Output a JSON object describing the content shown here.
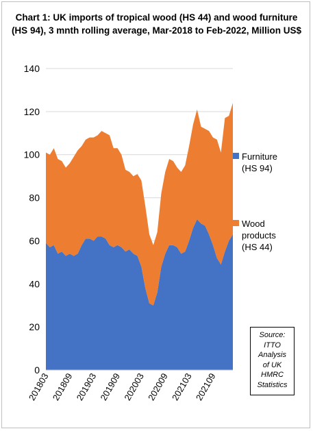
{
  "chart_data": {
    "type": "area",
    "stacked": true,
    "title": "Chart 1: UK imports of tropical wood (HS 44) and wood furniture (HS 94), 3 mnth rolling average, Mar-2018 to Feb-2022, Million US$",
    "ylim": [
      0,
      140
    ],
    "yticks": [
      0,
      20,
      40,
      60,
      80,
      100,
      120,
      140
    ],
    "x": [
      "201803",
      "201804",
      "201805",
      "201806",
      "201807",
      "201808",
      "201809",
      "201810",
      "201811",
      "201812",
      "201901",
      "201902",
      "201903",
      "201904",
      "201905",
      "201906",
      "201907",
      "201908",
      "201909",
      "201910",
      "201911",
      "201912",
      "202001",
      "202002",
      "202003",
      "202004",
      "202005",
      "202006",
      "202007",
      "202008",
      "202009",
      "202010",
      "202011",
      "202012",
      "202101",
      "202102",
      "202103",
      "202104",
      "202105",
      "202106",
      "202107",
      "202108",
      "202109",
      "202110",
      "202111",
      "202112",
      "202201",
      "202202"
    ],
    "xtick_labels": [
      "201803",
      "201809",
      "201903",
      "201909",
      "202003",
      "202009",
      "202103",
      "202109"
    ],
    "series": [
      {
        "name": "Furniture (HS 94)",
        "color": "#4472c4",
        "values": [
          59,
          57,
          58,
          54,
          55,
          53,
          54,
          53,
          54,
          58,
          61,
          61,
          60,
          62,
          62,
          61,
          58,
          57,
          58,
          57,
          55,
          56,
          54,
          53,
          48,
          38,
          31,
          30,
          36,
          48,
          54,
          58,
          58,
          57,
          54,
          55,
          60,
          66,
          70,
          68,
          67,
          63,
          58,
          52,
          49,
          55,
          60,
          63
        ]
      },
      {
        "name": "Wood products (HS 44)",
        "color": "#ed7d31",
        "values": [
          42,
          43,
          45,
          44,
          42,
          41,
          42,
          46,
          48,
          46,
          46,
          47,
          48,
          47,
          49,
          49,
          51,
          46,
          45,
          43,
          38,
          36,
          36,
          38,
          40,
          38,
          32,
          28,
          28,
          34,
          38,
          40,
          39,
          37,
          38,
          40,
          44,
          48,
          51,
          45,
          45,
          48,
          50,
          55,
          52,
          62,
          58,
          61
        ]
      }
    ],
    "legend": [
      "Furniture (HS 94)",
      "Wood products (HS 44)"
    ],
    "legend_position": "right",
    "grid": true
  },
  "title": "Chart 1: UK imports of tropical wood (HS 44) and wood furniture (HS 94), 3 mnth rolling average, Mar-2018 to Feb-2022, Million US$",
  "legend": {
    "furniture_line1": "Furniture",
    "furniture_line2": "(HS 94)",
    "wood_line1": "Wood",
    "wood_line2": "products",
    "wood_line3": "(HS 44)"
  },
  "source_lines": [
    "Source:",
    "ITTO",
    "Analysis",
    "of UK",
    "HMRC",
    "Statistics"
  ]
}
